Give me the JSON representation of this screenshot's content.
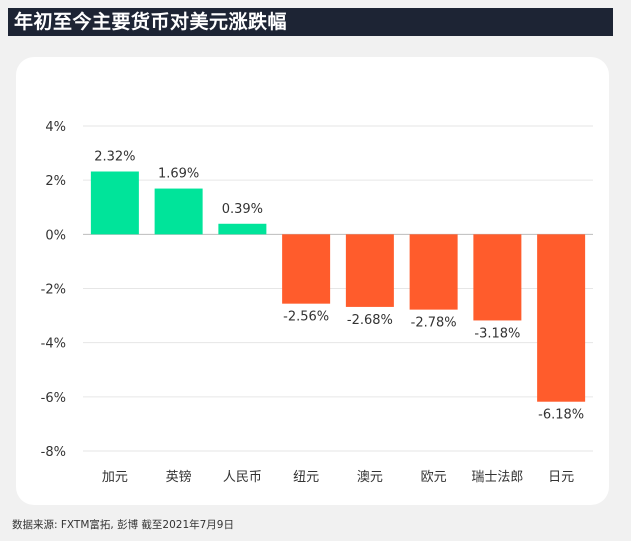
{
  "header": {
    "title": "年初至今主要货币对美元涨跌幅"
  },
  "footer": {
    "source": "数据来源: FXTM富拓, 彭博 截至2021年7月9日"
  },
  "colors": {
    "positive": "#00e49a",
    "negative": "#ff5c2c",
    "header_bg": "#1d2434",
    "grid": "#e6e6e6"
  },
  "chart_data": {
    "type": "bar",
    "title": "年初至今主要货币对美元涨跌幅",
    "xlabel": "",
    "ylabel": "",
    "unit": "%",
    "categories": [
      "加元",
      "英镑",
      "人民币",
      "纽元",
      "澳元",
      "欧元",
      "瑞士法郎",
      "日元"
    ],
    "values": [
      2.32,
      1.69,
      0.39,
      -2.56,
      -2.68,
      -2.78,
      -3.18,
      -6.18
    ],
    "value_labels": [
      "2.32%",
      "1.69%",
      "0.39%",
      "-2.56%",
      "-2.68%",
      "-2.78%",
      "-3.18%",
      "-6.18%"
    ],
    "ylim": [
      -8,
      4
    ],
    "yticks": [
      4,
      2,
      0,
      -2,
      -4,
      -6,
      -8
    ],
    "ytick_labels": [
      "4%",
      "2%",
      "0%",
      "-2%",
      "-4%",
      "-6%",
      "-8%"
    ],
    "grid": true,
    "legend": "none"
  }
}
